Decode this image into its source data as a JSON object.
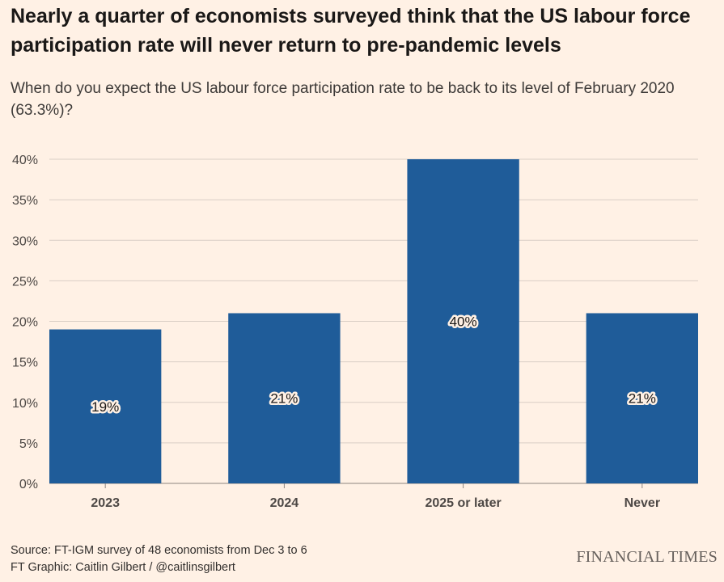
{
  "title": "Nearly a quarter of economists surveyed think that the US labour force participation rate will never return to pre-pandemic levels",
  "subtitle": "When do you expect the US labour force participation rate to be back to its level of February 2020 (63.3%)?",
  "chart_data": {
    "type": "bar",
    "categories": [
      "2023",
      "2024",
      "2025 or later",
      "Never"
    ],
    "values": [
      19,
      21,
      40,
      21
    ],
    "value_labels": [
      "19%",
      "21%",
      "40%",
      "21%"
    ],
    "ylim": [
      0,
      40
    ],
    "yticks": [
      0,
      5,
      10,
      15,
      20,
      25,
      30,
      35,
      40
    ],
    "ytick_labels": [
      "0%",
      "5%",
      "10%",
      "15%",
      "20%",
      "25%",
      "30%",
      "35%",
      "40%"
    ],
    "xlabel": "",
    "ylabel": "",
    "grid": true,
    "bar_color": "#1f5c99",
    "grid_color": "#d9cec5"
  },
  "footer": {
    "source": "Source: FT-IGM survey of 48 economists from Dec 3 to 6",
    "credit": "FT Graphic: Caitlin Gilbert / @caitlinsgilbert",
    "brand": "FINANCIAL TIMES"
  }
}
